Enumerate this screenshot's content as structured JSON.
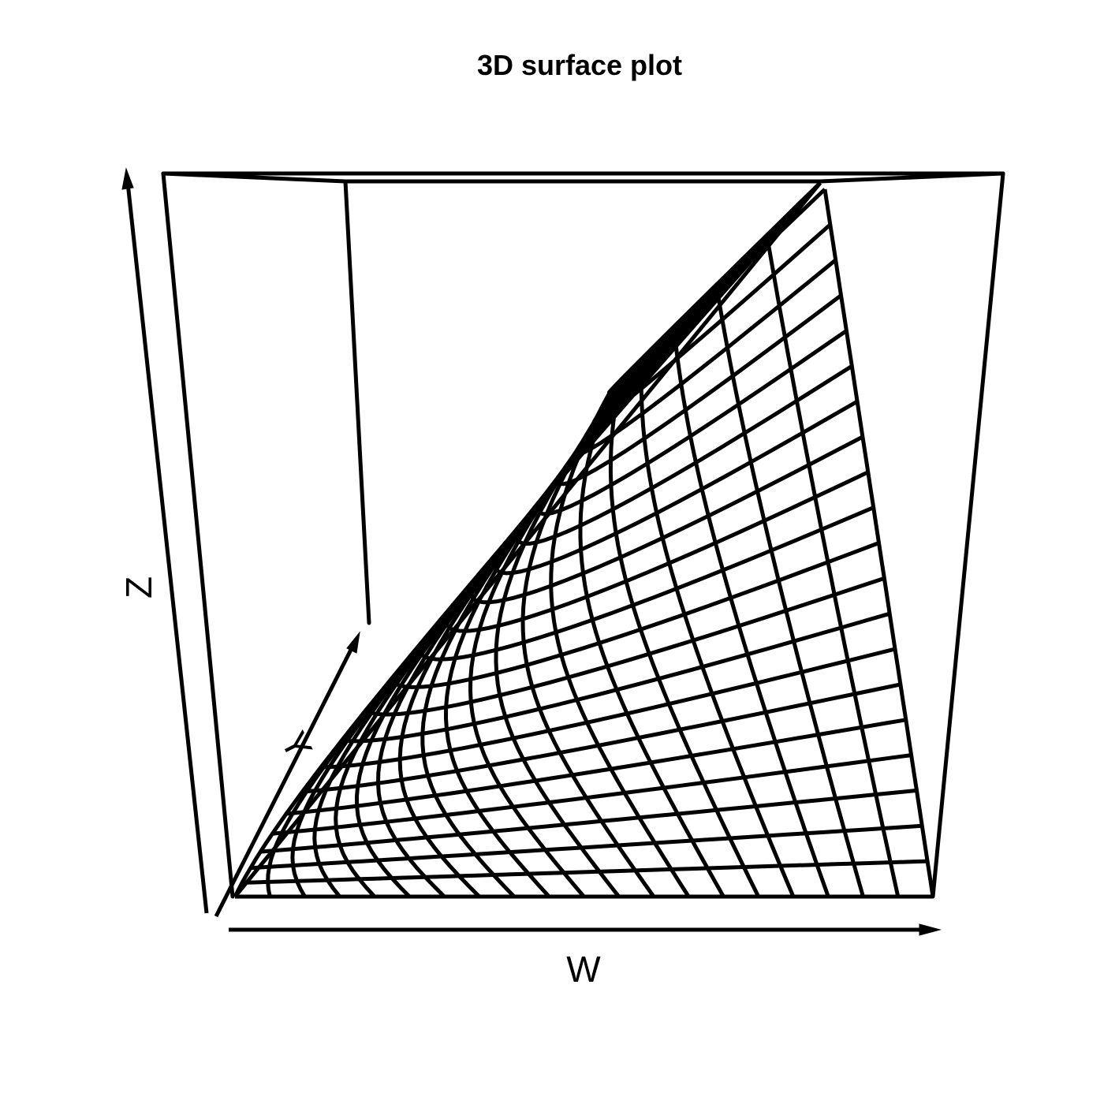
{
  "chart_data": {
    "type": "surface-3d",
    "title": "3D surface plot",
    "xlabel": "W",
    "ylabel": "Y",
    "zlabel": "Z",
    "surface": {
      "description_of_shape": "wireframe mesh",
      "grid_rows": 20,
      "grid_cols": 20
    },
    "grid": false,
    "colors": {
      "line": "#000000",
      "background": "#ffffff"
    }
  }
}
